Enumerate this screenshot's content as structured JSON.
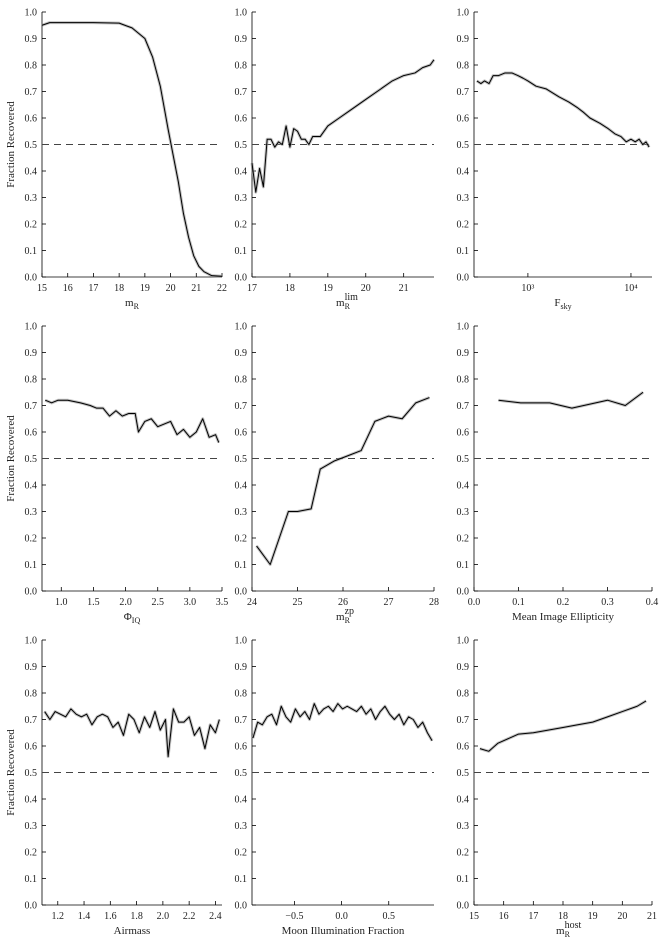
{
  "chart_data": [
    {
      "type": "line",
      "xlabel": {
        "main": "m",
        "sub": "R"
      },
      "ylabel": "Fraction Recovered",
      "color": "#000000",
      "hline": 0.5,
      "x": [
        15.0,
        15.3,
        16.0,
        17.0,
        18.0,
        18.5,
        19.0,
        19.3,
        19.6,
        19.9,
        20.1,
        20.3,
        20.5,
        20.7,
        20.9,
        21.1,
        21.3,
        21.6,
        22.0
      ],
      "values": [
        0.95,
        0.96,
        0.96,
        0.96,
        0.958,
        0.94,
        0.9,
        0.83,
        0.72,
        0.56,
        0.46,
        0.36,
        0.24,
        0.15,
        0.08,
        0.04,
        0.02,
        0.005,
        0.003
      ],
      "xlim": [
        15,
        22
      ],
      "xticks": [
        15,
        16,
        17,
        18,
        19,
        20,
        21,
        22
      ],
      "ylim": [
        0,
        1
      ],
      "yticks": [
        {
          "value": 0,
          "label": "0.0"
        },
        0.1,
        0.2,
        0.3,
        0.4,
        0.5,
        0.6,
        0.7,
        0.8,
        0.9,
        {
          "value": 1,
          "label": "1.0"
        }
      ]
    },
    {
      "type": "line",
      "xlabel": {
        "main": "m",
        "sub": "R",
        "sup": "lim"
      },
      "color": "#000000",
      "hline": 0.5,
      "x": [
        17.0,
        17.1,
        17.2,
        17.3,
        17.4,
        17.5,
        17.6,
        17.7,
        17.8,
        17.9,
        18.0,
        18.1,
        18.2,
        18.3,
        18.4,
        18.5,
        18.6,
        18.8,
        19.0,
        19.3,
        19.6,
        20.0,
        20.4,
        20.7,
        21.0,
        21.3,
        21.5,
        21.7,
        21.8
      ],
      "values": [
        0.43,
        0.32,
        0.41,
        0.34,
        0.52,
        0.52,
        0.49,
        0.51,
        0.5,
        0.57,
        0.49,
        0.56,
        0.55,
        0.52,
        0.52,
        0.5,
        0.53,
        0.53,
        0.57,
        0.6,
        0.63,
        0.67,
        0.71,
        0.74,
        0.76,
        0.77,
        0.79,
        0.8,
        0.82
      ],
      "xlim": [
        17,
        21.8
      ],
      "xticks": [
        17,
        18,
        19,
        20,
        21
      ],
      "ylim": [
        0,
        1
      ],
      "yticks": [
        {
          "value": 0,
          "label": "0.0"
        },
        0.1,
        0.2,
        0.3,
        0.4,
        0.5,
        0.6,
        0.7,
        0.8,
        0.9,
        {
          "value": 1,
          "label": "1.0"
        }
      ]
    },
    {
      "type": "line",
      "xlabel": {
        "main": "F",
        "sub": "sky"
      },
      "color": "#000000",
      "hline": 0.5,
      "xlog": true,
      "x": [
        320,
        350,
        380,
        420,
        460,
        520,
        600,
        700,
        800,
        900,
        1000,
        1200,
        1500,
        2000,
        2500,
        3000,
        3500,
        4000,
        5000,
        6000,
        7000,
        8000,
        9000,
        10000,
        11000,
        12000,
        13000,
        14000,
        15000
      ],
      "values": [
        0.74,
        0.73,
        0.74,
        0.73,
        0.76,
        0.76,
        0.77,
        0.77,
        0.76,
        0.75,
        0.74,
        0.72,
        0.71,
        0.68,
        0.66,
        0.64,
        0.62,
        0.6,
        0.58,
        0.56,
        0.54,
        0.53,
        0.51,
        0.52,
        0.51,
        0.52,
        0.5,
        0.51,
        0.49
      ],
      "xlim": [
        300,
        16000
      ],
      "xticks": [
        {
          "value": 1000,
          "label": "10³"
        },
        {
          "value": 10000,
          "label": "10⁴"
        }
      ],
      "ylim": [
        0,
        1
      ],
      "yticks": [
        {
          "value": 0,
          "label": "0.0"
        },
        0.1,
        0.2,
        0.3,
        0.4,
        0.5,
        0.6,
        0.7,
        0.8,
        0.9,
        {
          "value": 1,
          "label": "1.0"
        }
      ]
    },
    {
      "type": "line",
      "xlabel": {
        "main": "Φ",
        "sub": "IQ"
      },
      "ylabel": "Fraction Recovered",
      "color": "#000000",
      "hline": 0.5,
      "x": [
        0.75,
        0.85,
        0.95,
        1.1,
        1.3,
        1.45,
        1.55,
        1.65,
        1.75,
        1.85,
        1.95,
        2.05,
        2.15,
        2.2,
        2.3,
        2.4,
        2.5,
        2.6,
        2.7,
        2.8,
        2.9,
        3.0,
        3.1,
        3.2,
        3.3,
        3.4,
        3.45
      ],
      "values": [
        0.72,
        0.71,
        0.72,
        0.72,
        0.71,
        0.7,
        0.69,
        0.69,
        0.66,
        0.68,
        0.66,
        0.67,
        0.67,
        0.6,
        0.64,
        0.65,
        0.62,
        0.63,
        0.64,
        0.59,
        0.61,
        0.58,
        0.6,
        0.65,
        0.58,
        0.59,
        0.56
      ],
      "xlim": [
        0.7,
        3.5
      ],
      "xticks": [
        {
          "value": 1,
          "label": "1.0"
        },
        1.5,
        {
          "value": 2,
          "label": "2.0"
        },
        2.5,
        {
          "value": 3,
          "label": "3.0"
        },
        3.5
      ],
      "ylim": [
        0,
        1
      ],
      "yticks": [
        {
          "value": 0,
          "label": "0.0"
        },
        0.1,
        0.2,
        0.3,
        0.4,
        0.5,
        0.6,
        0.7,
        0.8,
        0.9,
        {
          "value": 1,
          "label": "1.0"
        }
      ]
    },
    {
      "type": "line",
      "xlabel": {
        "main": "m",
        "sub": "R",
        "sup": "zp"
      },
      "color": "#000000",
      "hline": 0.5,
      "x": [
        24.1,
        24.4,
        24.8,
        25.0,
        25.3,
        25.5,
        25.8,
        26.1,
        26.4,
        26.7,
        27.0,
        27.3,
        27.6,
        27.9
      ],
      "values": [
        0.17,
        0.1,
        0.3,
        0.3,
        0.31,
        0.46,
        0.49,
        0.51,
        0.53,
        0.64,
        0.66,
        0.65,
        0.71,
        0.73
      ],
      "xlim": [
        24,
        28
      ],
      "xticks": [
        24,
        25,
        26,
        27,
        28
      ],
      "ylim": [
        0,
        1
      ],
      "yticks": [
        {
          "value": 0,
          "label": "0.0"
        },
        0.1,
        0.2,
        0.3,
        0.4,
        0.5,
        0.6,
        0.7,
        0.8,
        0.9,
        {
          "value": 1,
          "label": "1.0"
        }
      ]
    },
    {
      "type": "line",
      "xlabel": "Mean Image Ellipticity",
      "color": "#000000",
      "hline": 0.5,
      "x": [
        0.055,
        0.105,
        0.17,
        0.22,
        0.3,
        0.34,
        0.38
      ],
      "values": [
        0.72,
        0.71,
        0.71,
        0.69,
        0.72,
        0.7,
        0.75
      ],
      "xlim": [
        0,
        0.4
      ],
      "xticks": [
        {
          "value": 0,
          "label": "0.0"
        },
        0.1,
        0.2,
        0.3,
        0.4
      ],
      "ylim": [
        0,
        1
      ],
      "yticks": [
        {
          "value": 0,
          "label": "0.0"
        },
        0.1,
        0.2,
        0.3,
        0.4,
        0.5,
        0.6,
        0.7,
        0.8,
        0.9,
        {
          "value": 1,
          "label": "1.0"
        }
      ]
    },
    {
      "type": "line",
      "xlabel": "Airmass",
      "ylabel": "Fraction Recovered",
      "color": "#000000",
      "hline": 0.5,
      "x": [
        1.1,
        1.14,
        1.18,
        1.22,
        1.26,
        1.3,
        1.34,
        1.38,
        1.42,
        1.46,
        1.5,
        1.54,
        1.58,
        1.62,
        1.66,
        1.7,
        1.74,
        1.78,
        1.82,
        1.86,
        1.9,
        1.94,
        1.98,
        2.02,
        2.04,
        2.08,
        2.12,
        2.16,
        2.2,
        2.24,
        2.28,
        2.32,
        2.36,
        2.4,
        2.43
      ],
      "values": [
        0.73,
        0.7,
        0.73,
        0.72,
        0.71,
        0.74,
        0.72,
        0.71,
        0.72,
        0.68,
        0.71,
        0.72,
        0.71,
        0.67,
        0.69,
        0.64,
        0.72,
        0.7,
        0.65,
        0.71,
        0.67,
        0.73,
        0.66,
        0.7,
        0.56,
        0.74,
        0.69,
        0.69,
        0.71,
        0.64,
        0.67,
        0.59,
        0.68,
        0.65,
        0.7
      ],
      "xlim": [
        1.08,
        2.45
      ],
      "xticks": [
        1.2,
        1.4,
        1.6,
        1.8,
        {
          "value": 2,
          "label": "2.0"
        },
        2.2,
        2.4
      ],
      "ylim": [
        0,
        1
      ],
      "yticks": [
        {
          "value": 0,
          "label": "0.0"
        },
        0.1,
        0.2,
        0.3,
        0.4,
        0.5,
        0.6,
        0.7,
        0.8,
        0.9,
        {
          "value": 1,
          "label": "1.0"
        }
      ]
    },
    {
      "type": "line",
      "xlabel": "Moon Illumination Fraction",
      "color": "#000000",
      "hline": 0.5,
      "x": [
        -0.94,
        -0.89,
        -0.84,
        -0.79,
        -0.74,
        -0.69,
        -0.64,
        -0.59,
        -0.54,
        -0.49,
        -0.44,
        -0.39,
        -0.34,
        -0.29,
        -0.24,
        -0.19,
        -0.14,
        -0.09,
        -0.04,
        0.01,
        0.06,
        0.11,
        0.16,
        0.21,
        0.26,
        0.31,
        0.36,
        0.41,
        0.46,
        0.51,
        0.56,
        0.61,
        0.66,
        0.71,
        0.76,
        0.81,
        0.86,
        0.91,
        0.96
      ],
      "values": [
        0.63,
        0.69,
        0.68,
        0.71,
        0.72,
        0.68,
        0.75,
        0.71,
        0.69,
        0.74,
        0.71,
        0.73,
        0.7,
        0.76,
        0.72,
        0.74,
        0.75,
        0.73,
        0.76,
        0.74,
        0.75,
        0.74,
        0.73,
        0.75,
        0.72,
        0.74,
        0.7,
        0.73,
        0.75,
        0.72,
        0.7,
        0.72,
        0.68,
        0.71,
        0.7,
        0.67,
        0.69,
        0.65,
        0.62
      ],
      "xlim": [
        -0.95,
        0.98
      ],
      "xticks": [
        {
          "value": -0.5,
          "label": "−0.5"
        },
        {
          "value": 0,
          "label": "0.0"
        },
        0.5
      ],
      "ylim": [
        0,
        1
      ],
      "yticks": [
        {
          "value": 0,
          "label": "0.0"
        },
        0.1,
        0.2,
        0.3,
        0.4,
        0.5,
        0.6,
        0.7,
        0.8,
        0.9,
        {
          "value": 1,
          "label": "1.0"
        }
      ]
    },
    {
      "type": "line",
      "xlabel": {
        "main": "m",
        "sub": "R",
        "sup": "host"
      },
      "color": "#000000",
      "hline": 0.5,
      "x": [
        15.2,
        15.5,
        15.8,
        16.2,
        16.5,
        17.0,
        17.5,
        18.0,
        18.5,
        19.0,
        19.5,
        20.0,
        20.5,
        20.8
      ],
      "values": [
        0.59,
        0.58,
        0.61,
        0.63,
        0.645,
        0.65,
        0.66,
        0.67,
        0.68,
        0.69,
        0.71,
        0.73,
        0.75,
        0.77
      ],
      "xlim": [
        15,
        21
      ],
      "xticks": [
        15,
        16,
        17,
        18,
        19,
        20,
        21
      ],
      "ylim": [
        0,
        1
      ],
      "yticks": [
        {
          "value": 0,
          "label": "0.0"
        },
        0.1,
        0.2,
        0.3,
        0.4,
        0.5,
        0.6,
        0.7,
        0.8,
        0.9,
        {
          "value": 1,
          "label": "1.0"
        }
      ]
    }
  ]
}
